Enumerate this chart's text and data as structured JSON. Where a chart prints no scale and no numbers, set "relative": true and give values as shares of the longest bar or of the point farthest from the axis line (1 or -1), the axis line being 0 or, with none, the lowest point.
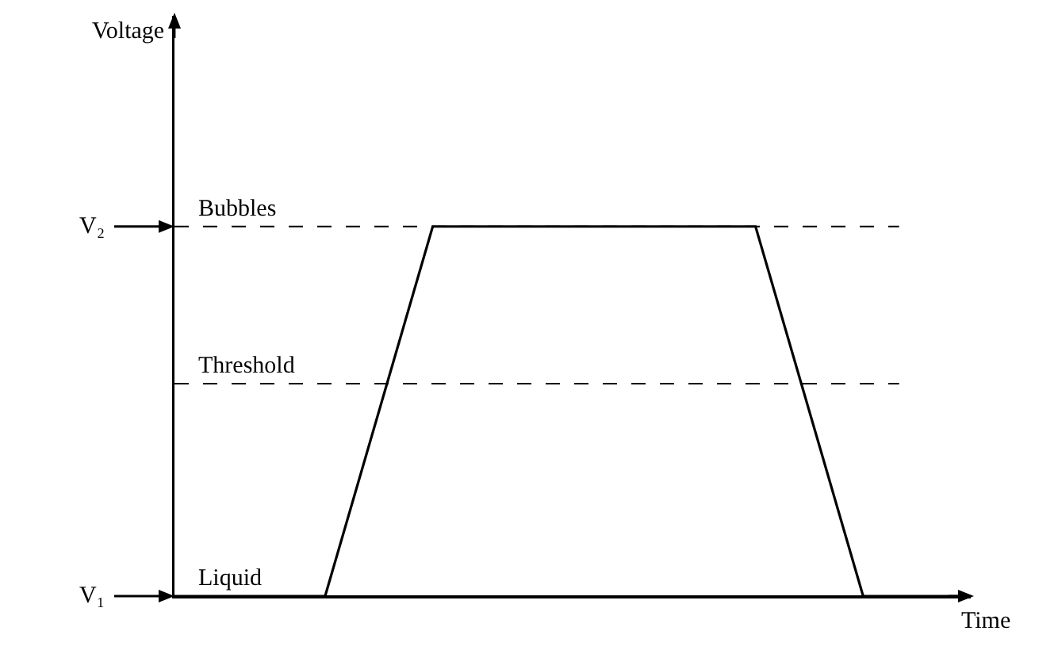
{
  "chart_data": {
    "type": "line",
    "xlabel": "Time",
    "relative": true,
    "categories": [
      null,
      null,
      null,
      null,
      null,
      null,
      null,
      null,
      null,
      null,
      null,
      null,
      null,
      null,
      null,
      null,
      null,
      null,
      null,
      null,
      null,
      null,
      null,
      null,
      null,
      null,
      null,
      null,
      null,
      null,
      null,
      null,
      null,
      null,
      null,
      null,
      null,
      null
    ],
    "series": [
      {
        "color": "#000000",
        "values": [
          0,
          0,
          0,
          0,
          0,
          0,
          0,
          0,
          0.2,
          0.4,
          0.6,
          0.8,
          1,
          1,
          1,
          1,
          1,
          1,
          1,
          1,
          1,
          1,
          1,
          1,
          1,
          1,
          1,
          1,
          0.8,
          0.6,
          0.4,
          0.2,
          0,
          0,
          0,
          0,
          0,
          0
        ]
      }
    ],
    "grid": false,
    "marker": "none",
    "line_style": "solid",
    "ref_lines": [
      {
        "axis": "y",
        "value": 1,
        "label": "Bubbles",
        "line_style": "dashed",
        "color": "#000000"
      },
      {
        "axis": "y",
        "value": 0,
        "label": "Liquid",
        "line_style": "solid",
        "color": "#000000"
      },
      {
        "axis": "y",
        "value": 0.575,
        "label": "Threshold",
        "line_style": "dashed",
        "color": "#000000"
      }
    ],
    "annotations": [
      "Voltage",
      "V₂",
      "V₁"
    ]
  }
}
